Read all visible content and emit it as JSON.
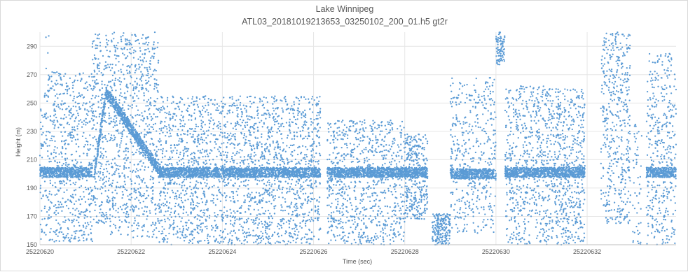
{
  "chart_data": {
    "type": "scatter",
    "title": "Lake Winnipeg",
    "subtitle": "ATL03_20181019213653_03250102_200_01.h5 gt2r",
    "xlabel": "Time (sec)",
    "ylabel": "Height (m)",
    "xlim": [
      25220620,
      25220633.95
    ],
    "ylim": [
      150,
      300
    ],
    "x_ticks": [
      25220620,
      25220622,
      25220624,
      25220626,
      25220628,
      25220630,
      25220632
    ],
    "x_tick_labels": [
      "25220620",
      "25220622",
      "25220624",
      "25220626",
      "25220628",
      "25220630",
      "25220632"
    ],
    "y_ticks": [
      150,
      170,
      190,
      210,
      230,
      250,
      270,
      290
    ],
    "y_tick_labels": [
      "150",
      "170",
      "190",
      "210",
      "230",
      "250",
      "270",
      "290"
    ],
    "grid": "vertical and horizontal",
    "legend": "none",
    "marker_color": "#5b9bd5",
    "series": [
      {
        "segments": [
          {
            "x_start": 25220620.0,
            "x_end": 25220621.15,
            "noise_y": [
              152,
              272
            ],
            "surface_y": 201,
            "density": 0.8
          },
          {
            "x_start": 25220620.1,
            "x_end": 25220620.2,
            "noise_y": [
              250,
              298
            ],
            "surface_y": null,
            "density": 0.15
          },
          {
            "x_start": 25220621.15,
            "x_end": 25220621.5,
            "noise_y": [
              165,
              300
            ],
            "surface_y": null,
            "density": 1.0
          },
          {
            "x_start": 25220621.5,
            "x_end": 25220622.6,
            "noise_y": [
              155,
              300
            ],
            "surface_y": null,
            "density": 1.0
          },
          {
            "x_start": 25220622.6,
            "x_end": 25220626.15,
            "noise_y": [
              150,
              255
            ],
            "surface_y": 201,
            "density": 0.85
          },
          {
            "x_start": 25220626.3,
            "x_end": 25220628.0,
            "noise_y": [
              150,
              238
            ],
            "surface_y": 201,
            "density": 0.7
          },
          {
            "x_start": 25220628.0,
            "x_end": 25220628.5,
            "noise_y": [
              168,
              228
            ],
            "surface_y": 201,
            "density": 0.9
          },
          {
            "x_start": 25220628.6,
            "x_end": 25220629.0,
            "noise_y": [
              150,
              172
            ],
            "surface_y": null,
            "density": 0.7
          },
          {
            "x_start": 25220629.0,
            "x_end": 25220630.0,
            "noise_y": [
              158,
              268
            ],
            "surface_y": 200,
            "density": 0.6
          },
          {
            "x_start": 25220630.0,
            "x_end": 25220630.2,
            "noise_y": [
              277,
              300
            ],
            "surface_y": null,
            "density": 0.6
          },
          {
            "x_start": 25220630.2,
            "x_end": 25220631.3,
            "noise_y": [
              150,
              262
            ],
            "surface_y": 201,
            "density": 0.8
          },
          {
            "x_start": 25220631.3,
            "x_end": 25220631.95,
            "noise_y": [
              150,
              260
            ],
            "surface_y": 201,
            "density": 1.0
          },
          {
            "x_start": 25220632.3,
            "x_end": 25220632.95,
            "noise_y": [
              165,
              300
            ],
            "surface_y": null,
            "density": 1.0
          },
          {
            "x_start": 25220633.0,
            "x_end": 25220633.2,
            "noise_y": [
              150,
              237
            ],
            "surface_y": null,
            "density": 0.35
          },
          {
            "x_start": 25220633.3,
            "x_end": 25220633.95,
            "noise_y": [
              150,
              285
            ],
            "surface_y": 201,
            "density": 0.85
          }
        ],
        "surface_ramp": [
          {
            "x": 25220621.2,
            "y": 201
          },
          {
            "x": 25220621.45,
            "y": 258
          },
          {
            "x": 25220622.5,
            "y": 208
          },
          {
            "x": 25220622.65,
            "y": 201
          }
        ]
      }
    ]
  }
}
